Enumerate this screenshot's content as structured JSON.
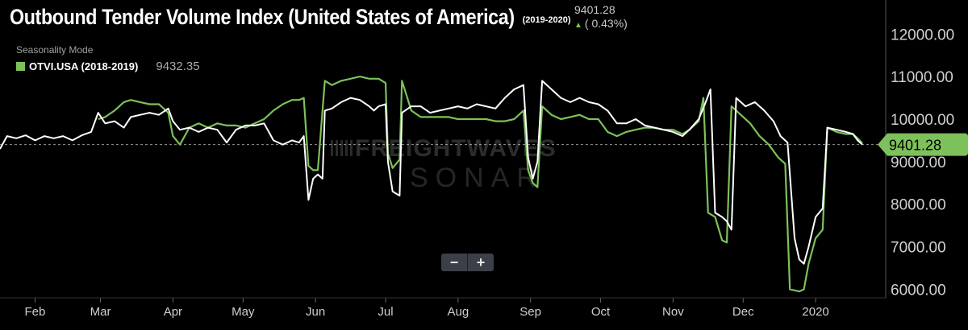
{
  "header": {
    "title": "Outbound Tender Volume Index (United States of America)",
    "subtitle": "(2019-2020)",
    "current_value": "9401.28",
    "current_change": "( 0.43%)",
    "mode_label": "Seasonality Mode",
    "legend_name": "OTVI.USA (2018-2019)",
    "legend_value": "9432.35"
  },
  "watermark": {
    "brand": "FREIGHTWAVES",
    "product": "SONAR"
  },
  "zoom": {
    "minus": "−",
    "plus": "+"
  },
  "colors": {
    "background": "#000000",
    "current_series": "#ffffff",
    "prior_series": "#7dc15a",
    "price_tag": "#7dc15a",
    "zoom_button": "#3b4048"
  },
  "chart_data": {
    "type": "line",
    "x_unit": "day of year (Jan 1 = 0)",
    "xlim": [
      16,
      395
    ],
    "ylim": [
      5800,
      12800
    ],
    "ylabel_side": "right",
    "xticks": [
      {
        "label": "Feb",
        "x": 31
      },
      {
        "label": "Mar",
        "x": 59
      },
      {
        "label": "Apr",
        "x": 90
      },
      {
        "label": "May",
        "x": 120
      },
      {
        "label": "Jun",
        "x": 151
      },
      {
        "label": "Jul",
        "x": 181
      },
      {
        "label": "Aug",
        "x": 212
      },
      {
        "label": "Sep",
        "x": 243
      },
      {
        "label": "Oct",
        "x": 273
      },
      {
        "label": "Nov",
        "x": 304
      },
      {
        "label": "Dec",
        "x": 334
      },
      {
        "label": "2020",
        "x": 365
      }
    ],
    "yticks": [
      {
        "label": "12000.00",
        "value": 12000
      },
      {
        "label": "11000.00",
        "value": 11000
      },
      {
        "label": "10000.00",
        "value": 10000
      },
      {
        "label": "9000.00",
        "value": 9000
      },
      {
        "label": "8000.00",
        "value": 8000
      },
      {
        "label": "7000.00",
        "value": 7000
      },
      {
        "label": "6000.00",
        "value": 6000
      }
    ],
    "reference_line": {
      "value": 9401.28,
      "style": "dashed"
    },
    "price_tag_label": "9401.28",
    "series": [
      {
        "key": "current",
        "color": "#ffffff",
        "points": [
          [
            16,
            9300
          ],
          [
            19,
            9600
          ],
          [
            23,
            9550
          ],
          [
            27,
            9620
          ],
          [
            31,
            9500
          ],
          [
            35,
            9600
          ],
          [
            39,
            9550
          ],
          [
            43,
            9600
          ],
          [
            47,
            9500
          ],
          [
            51,
            9620
          ],
          [
            55,
            9700
          ],
          [
            58,
            10150
          ],
          [
            61,
            9900
          ],
          [
            65,
            9950
          ],
          [
            69,
            9800
          ],
          [
            72,
            10050
          ],
          [
            76,
            10100
          ],
          [
            80,
            10150
          ],
          [
            84,
            10100
          ],
          [
            88,
            10250
          ],
          [
            90,
            9950
          ],
          [
            93,
            9750
          ],
          [
            97,
            9800
          ],
          [
            101,
            9700
          ],
          [
            105,
            9800
          ],
          [
            109,
            9750
          ],
          [
            113,
            9450
          ],
          [
            117,
            9750
          ],
          [
            121,
            9850
          ],
          [
            125,
            9850
          ],
          [
            129,
            9900
          ],
          [
            133,
            9500
          ],
          [
            137,
            9400
          ],
          [
            141,
            9500
          ],
          [
            144,
            9450
          ],
          [
            146,
            9600
          ],
          [
            148,
            8100
          ],
          [
            150,
            8600
          ],
          [
            152,
            8700
          ],
          [
            154,
            8600
          ],
          [
            155,
            10200
          ],
          [
            158,
            10250
          ],
          [
            162,
            10400
          ],
          [
            166,
            10500
          ],
          [
            170,
            10450
          ],
          [
            174,
            10300
          ],
          [
            176,
            10200
          ],
          [
            178,
            10300
          ],
          [
            181,
            10350
          ],
          [
            182,
            9000
          ],
          [
            184,
            8300
          ],
          [
            187,
            8200
          ],
          [
            188,
            10150
          ],
          [
            192,
            10300
          ],
          [
            196,
            10300
          ],
          [
            200,
            10150
          ],
          [
            204,
            10200
          ],
          [
            208,
            10250
          ],
          [
            212,
            10300
          ],
          [
            216,
            10250
          ],
          [
            220,
            10350
          ],
          [
            224,
            10300
          ],
          [
            228,
            10250
          ],
          [
            232,
            10500
          ],
          [
            236,
            10700
          ],
          [
            240,
            10800
          ],
          [
            242,
            9100
          ],
          [
            244,
            8600
          ],
          [
            246,
            9000
          ],
          [
            248,
            10900
          ],
          [
            252,
            10700
          ],
          [
            256,
            10500
          ],
          [
            260,
            10400
          ],
          [
            264,
            10500
          ],
          [
            268,
            10400
          ],
          [
            272,
            10350
          ],
          [
            276,
            10200
          ],
          [
            280,
            9900
          ],
          [
            284,
            9900
          ],
          [
            288,
            10000
          ],
          [
            292,
            9850
          ],
          [
            296,
            9800
          ],
          [
            300,
            9750
          ],
          [
            304,
            9700
          ],
          [
            308,
            9600
          ],
          [
            311,
            9750
          ],
          [
            315,
            10000
          ],
          [
            318,
            10400
          ],
          [
            320,
            10700
          ],
          [
            322,
            7800
          ],
          [
            325,
            7700
          ],
          [
            327,
            7600
          ],
          [
            329,
            7400
          ],
          [
            331,
            10500
          ],
          [
            335,
            10300
          ],
          [
            339,
            10400
          ],
          [
            343,
            10200
          ],
          [
            347,
            9950
          ],
          [
            350,
            9600
          ],
          [
            353,
            9450
          ],
          [
            356,
            7200
          ],
          [
            358,
            6700
          ],
          [
            360,
            6600
          ],
          [
            362,
            7000
          ],
          [
            365,
            7700
          ],
          [
            368,
            7900
          ],
          [
            370,
            9800
          ],
          [
            374,
            9750
          ],
          [
            378,
            9700
          ],
          [
            381,
            9650
          ],
          [
            383,
            9500
          ],
          [
            385,
            9401.28
          ]
        ]
      },
      {
        "key": "prior",
        "color": "#7dc15a",
        "points": [
          [
            58,
            10000
          ],
          [
            61,
            10050
          ],
          [
            65,
            10200
          ],
          [
            69,
            10400
          ],
          [
            72,
            10450
          ],
          [
            76,
            10400
          ],
          [
            80,
            10350
          ],
          [
            84,
            10350
          ],
          [
            88,
            10150
          ],
          [
            90,
            9600
          ],
          [
            93,
            9400
          ],
          [
            97,
            9800
          ],
          [
            101,
            9900
          ],
          [
            105,
            9800
          ],
          [
            109,
            9900
          ],
          [
            113,
            9850
          ],
          [
            117,
            9850
          ],
          [
            121,
            9800
          ],
          [
            125,
            9900
          ],
          [
            129,
            10000
          ],
          [
            133,
            10200
          ],
          [
            137,
            10350
          ],
          [
            141,
            10450
          ],
          [
            144,
            10450
          ],
          [
            146,
            10500
          ],
          [
            148,
            8900
          ],
          [
            150,
            8800
          ],
          [
            152,
            8800
          ],
          [
            155,
            10900
          ],
          [
            158,
            10800
          ],
          [
            162,
            10900
          ],
          [
            166,
            10950
          ],
          [
            170,
            11000
          ],
          [
            174,
            10950
          ],
          [
            178,
            10950
          ],
          [
            181,
            10850
          ],
          [
            182,
            9200
          ],
          [
            184,
            8850
          ],
          [
            187,
            9050
          ],
          [
            188,
            10900
          ],
          [
            192,
            10200
          ],
          [
            196,
            10050
          ],
          [
            200,
            10050
          ],
          [
            204,
            10050
          ],
          [
            208,
            10050
          ],
          [
            212,
            10000
          ],
          [
            216,
            10000
          ],
          [
            220,
            10000
          ],
          [
            224,
            10000
          ],
          [
            228,
            9950
          ],
          [
            232,
            9950
          ],
          [
            236,
            10000
          ],
          [
            240,
            10200
          ],
          [
            242,
            8800
          ],
          [
            244,
            8500
          ],
          [
            246,
            8400
          ],
          [
            248,
            10300
          ],
          [
            252,
            10100
          ],
          [
            256,
            10000
          ],
          [
            260,
            10050
          ],
          [
            264,
            10100
          ],
          [
            268,
            10000
          ],
          [
            272,
            10000
          ],
          [
            276,
            9700
          ],
          [
            280,
            9600
          ],
          [
            284,
            9700
          ],
          [
            288,
            9750
          ],
          [
            292,
            9800
          ],
          [
            296,
            9800
          ],
          [
            300,
            9750
          ],
          [
            304,
            9750
          ],
          [
            308,
            9650
          ],
          [
            311,
            9750
          ],
          [
            315,
            9950
          ],
          [
            317,
            10500
          ],
          [
            319,
            7800
          ],
          [
            322,
            7700
          ],
          [
            325,
            7150
          ],
          [
            327,
            7100
          ],
          [
            329,
            10300
          ],
          [
            333,
            10100
          ],
          [
            337,
            9900
          ],
          [
            341,
            9600
          ],
          [
            345,
            9400
          ],
          [
            349,
            9100
          ],
          [
            352,
            8950
          ],
          [
            354,
            6000
          ],
          [
            358,
            5950
          ],
          [
            360,
            6000
          ],
          [
            362,
            6600
          ],
          [
            365,
            7200
          ],
          [
            368,
            7400
          ],
          [
            370,
            9800
          ],
          [
            374,
            9700
          ],
          [
            378,
            9650
          ],
          [
            381,
            9650
          ],
          [
            383,
            9550
          ],
          [
            385,
            9432.35
          ]
        ]
      }
    ]
  }
}
